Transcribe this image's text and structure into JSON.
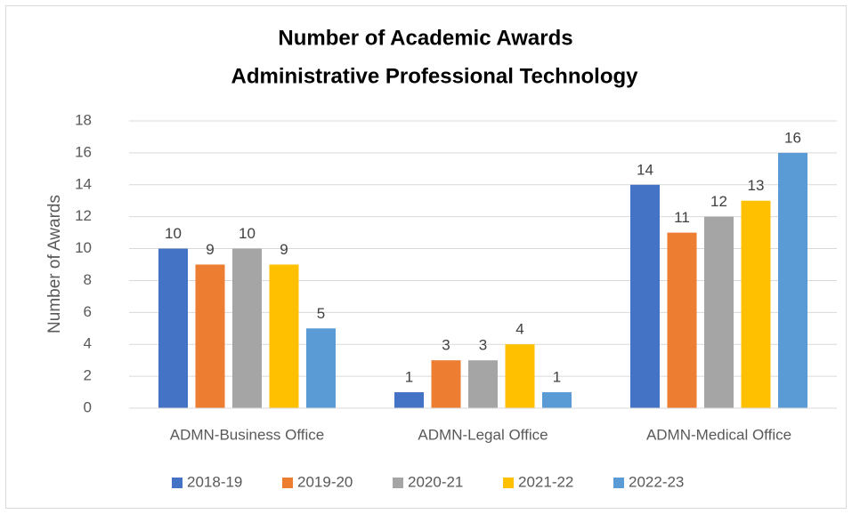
{
  "chart_data": {
    "type": "bar",
    "title": [
      "Number of Academic Awards",
      "Administrative Professional Technology"
    ],
    "y_label": "Number of Awards",
    "categories": [
      "ADMN-Business Office",
      "ADMN-Legal Office",
      "ADMN-Medical Office"
    ],
    "series": [
      {
        "name": "2018-19",
        "color": "#4472c4",
        "values": [
          10,
          1,
          14
        ]
      },
      {
        "name": "2019-20",
        "color": "#ed7d31",
        "values": [
          9,
          3,
          11
        ]
      },
      {
        "name": "2020-21",
        "color": "#a5a5a5",
        "values": [
          10,
          3,
          12
        ]
      },
      {
        "name": "2021-22",
        "color": "#ffc000",
        "values": [
          9,
          4,
          13
        ]
      },
      {
        "name": "2022-23",
        "color": "#5b9bd5",
        "values": [
          5,
          1,
          16
        ]
      }
    ],
    "ylim": [
      0,
      18
    ],
    "yticks": [
      0,
      2,
      4,
      6,
      8,
      10,
      12,
      14,
      16,
      18
    ],
    "grid": true,
    "legend": "bottom",
    "data_labels": true
  }
}
